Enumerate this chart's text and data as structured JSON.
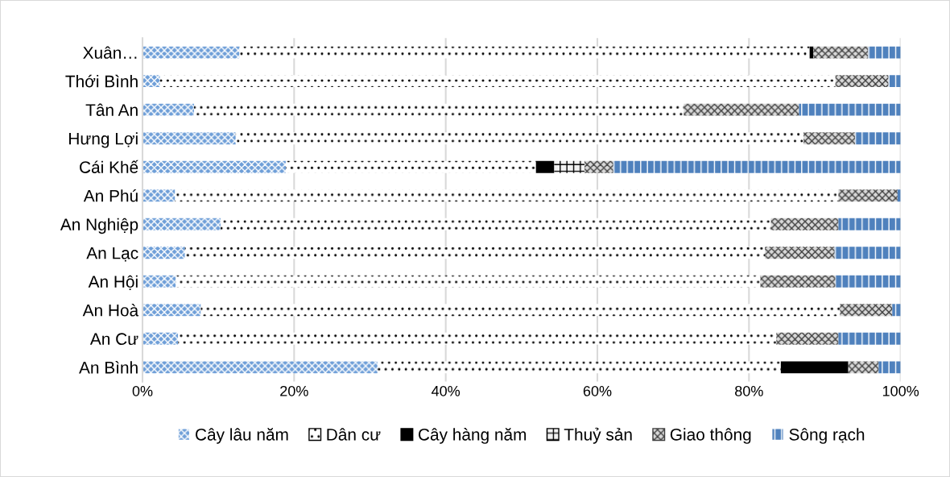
{
  "chart_data": {
    "type": "bar",
    "orientation": "horizontal",
    "stacked": true,
    "categories": [
      "Xuân…",
      "Thới Bình",
      "Tân An",
      "Hưng Lợi",
      "Cái Khế",
      "An Phú",
      "An Nghiệp",
      "An Lạc",
      "An Hội",
      "An Hoà",
      "An Cư",
      "An Bình"
    ],
    "series": [
      {
        "name": "Cây lâu năm",
        "color": "#6f9fd8",
        "values": [
          12.8,
          2.3,
          6.8,
          12.3,
          18.9,
          4.3,
          10.3,
          5.6,
          4.4,
          7.7,
          4.7,
          31.0
        ]
      },
      {
        "name": "Dân cư",
        "color": "#ffffff",
        "values": [
          75.2,
          89.1,
          64.6,
          74.9,
          33.0,
          87.5,
          72.6,
          76.5,
          77.1,
          84.3,
          78.9,
          53.2
        ]
      },
      {
        "name": "Cây hàng năm",
        "color": "#000000",
        "values": [
          0.5,
          0,
          0,
          0,
          2.4,
          0,
          0,
          0,
          0,
          0,
          0,
          8.9
        ]
      },
      {
        "name": "Thuỷ sản",
        "color": "#f2f2f2",
        "values": [
          0,
          0,
          0,
          0,
          4.0,
          0,
          0,
          0,
          0,
          0,
          0,
          0
        ]
      },
      {
        "name": "Giao thông",
        "color": "#d9d9d9",
        "values": [
          7.2,
          7.0,
          15.2,
          6.8,
          3.8,
          7.8,
          8.9,
          9.2,
          9.9,
          6.9,
          8.2,
          4.0
        ]
      },
      {
        "name": "Sông rạch",
        "color": "#4f81bd",
        "values": [
          4.3,
          1.6,
          13.4,
          6.0,
          37.9,
          0.4,
          8.2,
          8.7,
          8.6,
          1.1,
          8.2,
          2.9
        ]
      }
    ],
    "xlim": [
      0,
      100
    ],
    "xticks": [
      {
        "value": 0,
        "label": "0%"
      },
      {
        "value": 20,
        "label": "20%"
      },
      {
        "value": 40,
        "label": "40%"
      },
      {
        "value": 60,
        "label": "60%"
      },
      {
        "value": 80,
        "label": "80%"
      },
      {
        "value": 100,
        "label": "100%"
      }
    ],
    "grid": "x",
    "legend": "bottom"
  }
}
